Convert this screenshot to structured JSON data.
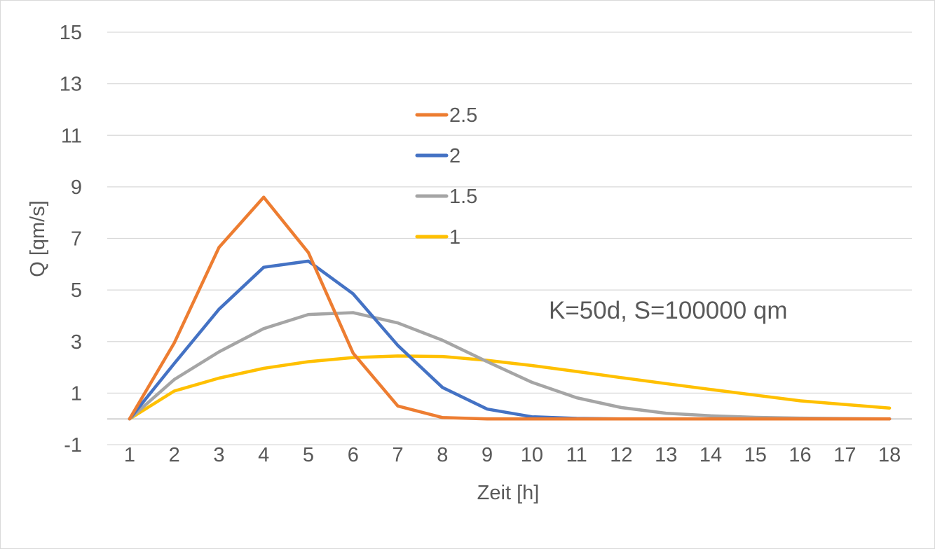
{
  "chart_data": {
    "type": "line",
    "title": "",
    "xlabel": "Zeit [h]",
    "ylabel": "Q [qm/s]",
    "annotation": "K=50d, S=100000 qm",
    "categories": [
      "1",
      "2",
      "3",
      "4",
      "5",
      "6",
      "7",
      "8",
      "9",
      "10",
      "11",
      "12",
      "13",
      "14",
      "15",
      "16",
      "17",
      "18"
    ],
    "yticks": [
      "-1",
      "1",
      "3",
      "5",
      "7",
      "9",
      "11",
      "13",
      "15"
    ],
    "ylim": [
      -1,
      15
    ],
    "grid": true,
    "legend_position": "top-center",
    "series": [
      {
        "name": "2.5",
        "color": "#ED7D31",
        "values": [
          0,
          2.95,
          6.65,
          8.6,
          6.45,
          2.55,
          0.5,
          0.05,
          0,
          0,
          0,
          0,
          0,
          0,
          0,
          0,
          0,
          0
        ]
      },
      {
        "name": "2",
        "color": "#4472C4",
        "values": [
          0,
          2.15,
          4.25,
          5.88,
          6.12,
          4.85,
          2.85,
          1.22,
          0.38,
          0.08,
          0.02,
          0,
          0,
          0,
          0,
          0,
          0,
          0
        ]
      },
      {
        "name": "1.5",
        "color": "#A5A5A5",
        "values": [
          0,
          1.53,
          2.6,
          3.5,
          4.05,
          4.12,
          3.72,
          3.05,
          2.22,
          1.42,
          0.82,
          0.44,
          0.22,
          0.12,
          0.06,
          0.03,
          0.01,
          0
        ]
      },
      {
        "name": "1",
        "color": "#FFC000",
        "values": [
          0,
          1.08,
          1.58,
          1.96,
          2.22,
          2.38,
          2.44,
          2.42,
          2.27,
          2.07,
          1.84,
          1.6,
          1.37,
          1.14,
          0.92,
          0.7,
          0.56,
          0.42
        ]
      }
    ]
  }
}
